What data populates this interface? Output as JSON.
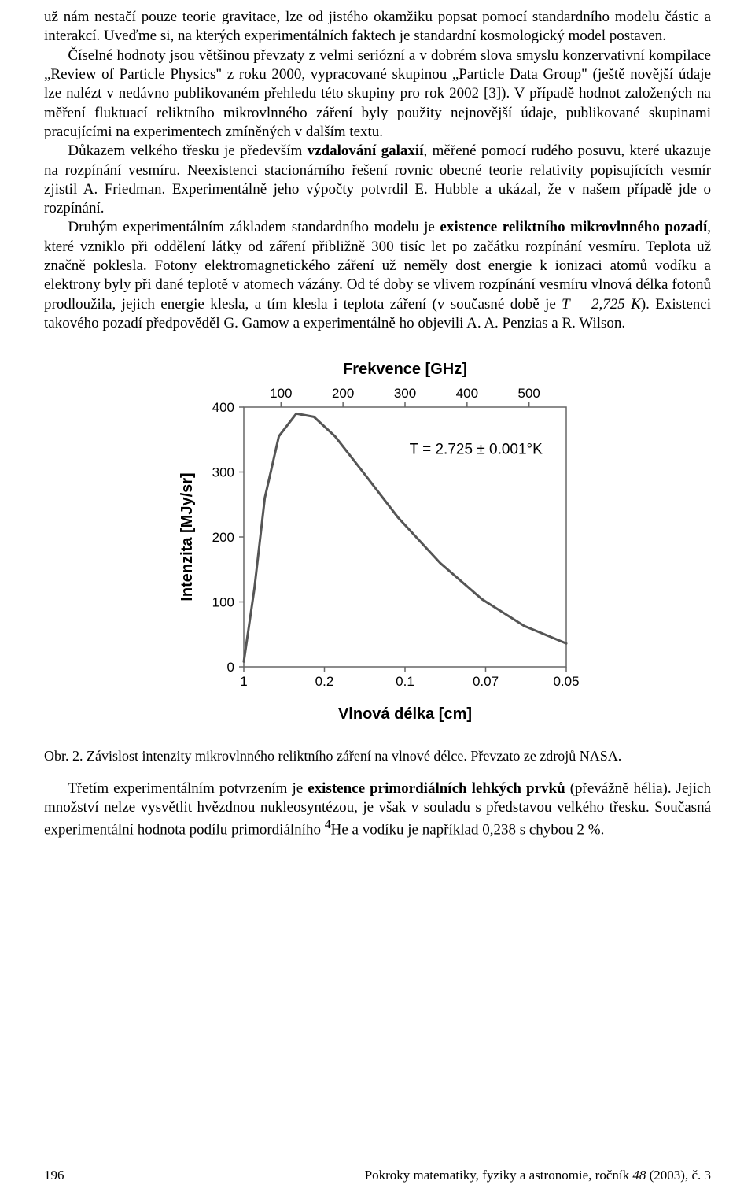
{
  "paragraphs": {
    "p1_a": "už nám nestačí pouze teorie gravitace, lze od jistého okamžiku popsat pomocí standardního modelu částic a interakcí. Uveďme si, na kterých experimentálních faktech je standardní kosmologický model postaven.",
    "p1_b": "Číselné hodnoty jsou většinou převzaty z velmi seriózní a v dobrém slova smyslu konzervativní kompilace „Review of Particle Physics\" z roku 2000, vypracované skupinou „Particle Data Group\" (ještě novější údaje lze nalézt v nedávno publikovaném přehledu této skupiny pro rok 2002 [3]). V případě hodnot založených na měření fluktuací reliktního mikrovlnného záření byly použity nejnovější údaje, publikované skupinami pracujícími na experimentech zmíněných v dalším textu.",
    "p2_a": "Důkazem velkého třesku je především ",
    "p2_bold": "vzdalování galaxií",
    "p2_b": ", měřené pomocí rudého posuvu, které ukazuje na rozpínání vesmíru. Neexistenci stacionárního řešení rovnic obecné teorie relativity popisujících vesmír zjistil A. Friedman. Experimentálně jeho výpočty potvrdil E. Hubble a ukázal, že v našem případě jde o rozpínání.",
    "p3_a": "Druhým experimentálním základem standardního modelu je ",
    "p3_bold": "existence reliktního mikrovlnného pozadí",
    "p3_b": ", které vzniklo při oddělení látky od záření přibližně 300 tisíc let po začátku rozpínání vesmíru. Teplota už značně poklesla. Fotony elektromagnetického záření už neměly dost energie k ionizaci atomů vodíku a elektrony byly při dané teplotě v atomech vázány. Od té doby se vlivem rozpínání vesmíru vlnová délka fotonů prodloužila, jejich energie klesla, a tím klesla i teplota záření (v současné době je ",
    "p3_math": "T = 2,725 K",
    "p3_c": "). Existenci takového pozadí předpověděl G. Gamow a experimentálně ho objevili A. A. Penzias a R. Wilson.",
    "p4_a": "Třetím experimentálním potvrzením je ",
    "p4_bold": "existence primordiálních lehkých prvků",
    "p4_b": " (převážně hélia). Jejich množství nelze vysvětlit hvězdnou nukleosyntézou, je však v souladu s představou velkého třesku. Současná experimentální hodnota podílu primordiálního ",
    "p4_sup_pre": "4",
    "p4_c": "He a vodíku je například 0,238 s chybou 2 %."
  },
  "figure": {
    "caption": "Obr. 2. Závislost intenzity mikrovlnného reliktního záření na vlnové délce. Převzato ze zdrojů NASA.",
    "top_axis_label": "Frekvence [GHz]",
    "bottom_axis_label": "Vlnová délka [cm]",
    "y_axis_label": "Intenzita [MJy/sr]",
    "top_ticks": [
      "100",
      "200",
      "300",
      "400",
      "500"
    ],
    "bottom_ticks": [
      "1",
      "0.2",
      "0.1",
      "0.07",
      "0.05"
    ],
    "y_ticks": [
      "0",
      "100",
      "200",
      "300",
      "400"
    ],
    "annotation": "T = 2.725 ± 0.001°K",
    "curve_color": "#555555",
    "axis_color": "#666666",
    "background_color": "#ffffff",
    "label_font_weight": "bold",
    "label_fontsize": 20,
    "tick_fontsize": 17,
    "annotation_fontsize": 19,
    "ylim": [
      0,
      400
    ],
    "curve_points": [
      [
        0,
        8
      ],
      [
        15,
        120
      ],
      [
        30,
        260
      ],
      [
        50,
        355
      ],
      [
        75,
        390
      ],
      [
        100,
        385
      ],
      [
        130,
        355
      ],
      [
        170,
        300
      ],
      [
        220,
        230
      ],
      [
        280,
        160
      ],
      [
        340,
        104
      ],
      [
        400,
        63
      ],
      [
        460,
        36
      ]
    ]
  },
  "footer": {
    "page_number": "196",
    "journal_a": "Pokroky matematiky, fyziky a astronomie, ročník ",
    "journal_vol": "48",
    "journal_b": " (2003), č. 3"
  }
}
